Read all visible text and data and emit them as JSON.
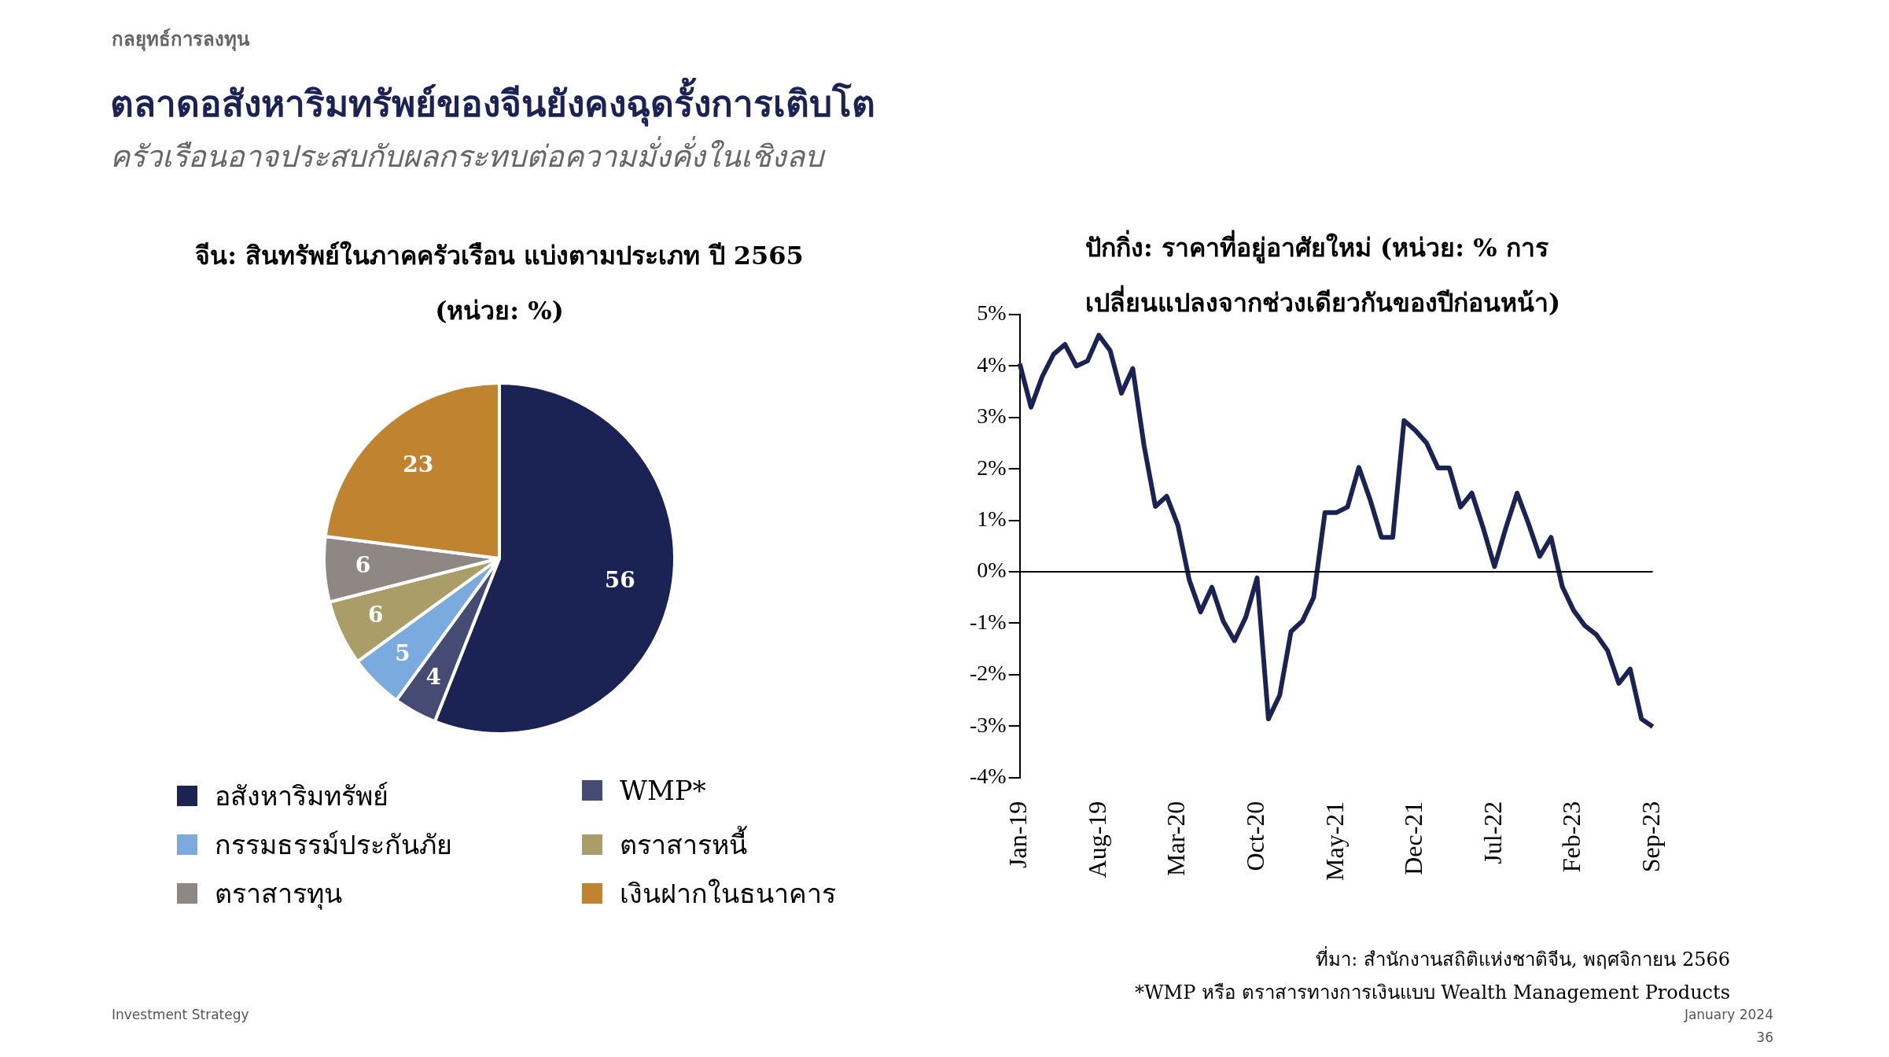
{
  "chart_data": [
    {
      "type": "other",
      "title": "ตลาดอสังหาริมทรัพย์ของจีนยังคงฉุดรั้งการเติบโต",
      "subtitle": "ครัวเรือนอาจประสบกับผลกระทบต่อความมั่งคั่งในเชิงลบ",
      "annotations": [
        "กลยุทธ์การลงทุน",
        "Investment Strategy",
        "January 2024",
        "36"
      ]
    },
    {
      "type": "pie",
      "title": "จีน: สินทรัพย์ในภาคครัวเรือน แบ่งตามประเภท ปี 2565\n(หน่วย: %)",
      "categories": [
        "อสังหาริมทรัพย์",
        "WMP*",
        "กรรมธรรม์ประกันภัย",
        "ตราสารหนี้",
        "ตราสารทุน",
        "เงินฝากในธนาคาร"
      ],
      "values": [
        56,
        4,
        5,
        6,
        6,
        23
      ],
      "colors": [
        "#1b2354",
        "#454b72",
        "#7aaade",
        "#ab9d67",
        "#8f8784",
        "#c0832f"
      ],
      "data_labels": true,
      "legend": "bottom"
    },
    {
      "type": "line",
      "title": "ปักกิ่ง: ราคาที่อยู่อาศัยใหม่ (หน่วย: % การ\nเปลี่ยนแปลงจากช่วงเดียวกันของปีก่อนหน้า)",
      "categories": [
        "Jan-19",
        null,
        null,
        null,
        null,
        null,
        null,
        "Aug-19",
        null,
        null,
        null,
        null,
        null,
        null,
        "Mar-20",
        null,
        null,
        null,
        null,
        null,
        null,
        "Oct-20",
        null,
        null,
        null,
        null,
        null,
        null,
        "May-21",
        null,
        null,
        null,
        null,
        null,
        null,
        "Dec-21",
        null,
        null,
        null,
        null,
        null,
        null,
        "Jul-22",
        null,
        null,
        null,
        null,
        null,
        null,
        "Feb-23",
        null,
        null,
        null,
        null,
        null,
        null,
        "Sep-23"
      ],
      "series": [
        {
          "color": "#1b2354",
          "values": [
            4.05,
            3.2,
            3.8,
            4.23,
            4.42,
            4.0,
            4.1,
            4.6,
            4.3,
            3.47,
            3.95,
            2.45,
            1.27,
            1.47,
            0.9,
            -0.16,
            -0.78,
            -0.3,
            -0.96,
            -1.34,
            -0.88,
            -0.12,
            -2.86,
            -2.4,
            -1.16,
            -0.96,
            -0.5,
            1.15,
            1.15,
            1.26,
            2.03,
            1.4,
            0.67,
            0.67,
            2.94,
            2.75,
            2.5,
            2.02,
            2.02,
            1.26,
            1.53,
            0.85,
            0.1,
            0.85,
            1.53,
            0.94,
            0.3,
            0.67,
            -0.29,
            -0.75,
            -1.05,
            -1.22,
            -1.53,
            -2.17,
            -1.89,
            -2.86,
            -3.01
          ]
        }
      ],
      "ylim": [
        -4,
        5
      ],
      "yticks": [
        {
          "value": -4,
          "label": "-4%"
        },
        {
          "value": -3,
          "label": "-3%"
        },
        {
          "value": -2,
          "label": "-2%"
        },
        {
          "value": -1,
          "label": "-1%"
        },
        {
          "value": 0,
          "label": "0%"
        },
        {
          "value": 1,
          "label": "1%"
        },
        {
          "value": 2,
          "label": "2%"
        },
        {
          "value": 3,
          "label": "3%"
        },
        {
          "value": 4,
          "label": "4%"
        },
        {
          "value": 5,
          "label": "5%"
        }
      ],
      "annotations": [
        "ที่มา: สำนักงานสถิติแห่งชาติจีน, พฤศจิกายน 2566",
        "*WMP หรือ ตราสารทางการเงินแบบ Wealth Management Products"
      ]
    }
  ]
}
